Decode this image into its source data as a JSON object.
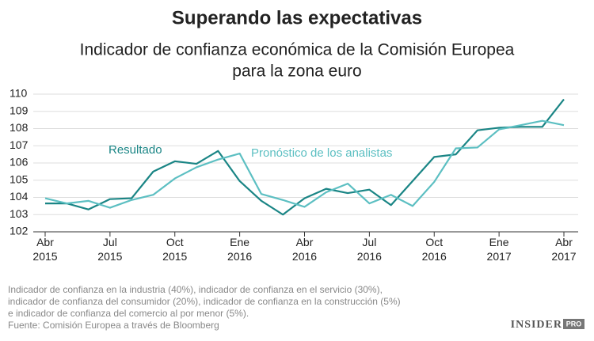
{
  "chart_data": {
    "type": "line",
    "title": "Superando las expectativas",
    "subtitle": [
      "Indicador de confianza económica de la Comisión Europea",
      "para la zona euro"
    ],
    "categories": [
      "Abr 2015",
      null,
      null,
      "Jul 2015",
      null,
      null,
      "Oct 2015",
      null,
      null,
      "Ene 2016",
      null,
      null,
      "Abr 2016",
      null,
      null,
      "Jul 2016",
      null,
      null,
      "Oct 2016",
      null,
      null,
      "Ene 2017",
      null,
      null,
      "Abr 2017"
    ],
    "series": [
      {
        "name": "Resultado",
        "color": "#1a8585",
        "values": [
          103.65,
          103.65,
          103.3,
          103.9,
          103.95,
          105.5,
          106.1,
          105.95,
          106.7,
          104.95,
          103.8,
          103.0,
          103.95,
          104.5,
          104.25,
          104.45,
          103.55,
          104.95,
          106.35,
          106.5,
          107.9,
          108.05,
          108.1,
          108.1,
          109.7
        ]
      },
      {
        "name": "Pronóstico de los analistas",
        "color": "#5cbfc2",
        "values": [
          103.95,
          103.65,
          103.8,
          103.4,
          103.85,
          104.15,
          105.1,
          105.75,
          106.2,
          106.55,
          104.2,
          103.85,
          103.45,
          104.3,
          104.8,
          103.65,
          104.15,
          103.5,
          104.9,
          106.85,
          106.9,
          107.95,
          108.2,
          108.45,
          108.2
        ]
      }
    ],
    "ylim": [
      102,
      110
    ],
    "yticks": [
      102,
      103,
      104,
      105,
      106,
      107,
      108,
      109,
      110
    ],
    "grid": true,
    "notes": [
      "Indicador de confianza en la industria (40%), indicador de confianza en el servicio (30%),",
      "indicador de confianza del consumidor (20%), indicador de confianza en la construcción (5%)",
      "e indicador de confianza del comercio al por menor (5%).",
      "Fuente: Comisión Europea a través de Bloomberg"
    ],
    "logo": {
      "name": "INSIDER",
      "badge": "PRO"
    }
  }
}
